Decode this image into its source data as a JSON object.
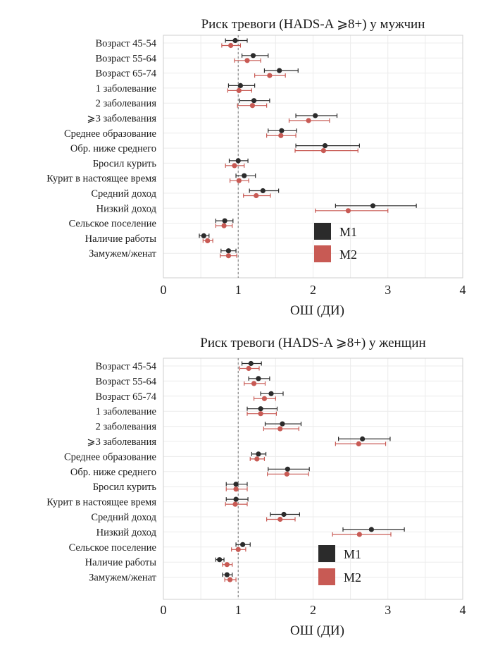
{
  "colors": {
    "m1": "#2b2b2b",
    "m2": "#c85a54"
  },
  "chart_data": [
    {
      "type": "forest",
      "title": "Риск тревоги (HADS-A ⩾8+) у мужчин",
      "xlabel": "ОШ (ДИ)",
      "xlim": [
        0,
        4
      ],
      "xticks": [
        "0",
        "1",
        "2",
        "3",
        "4"
      ],
      "reference_line": 1,
      "legend": {
        "position": "bottom-right",
        "entries": [
          "М1",
          "М2"
        ]
      },
      "categories": [
        "Возраст 45-54",
        "Возраст 55-64",
        "Возраст 65-74",
        "1 заболевание",
        "2 заболевания",
        "⩾3  заболевания",
        "Среднее образование",
        "Обр. ниже среднего",
        "Бросил курить",
        "Курит в настоящее время",
        "Средний доход",
        "Низкий доход",
        "Сельское поселение",
        "Наличие работы",
        "Замужем/женат"
      ],
      "series": [
        {
          "name": "М1",
          "values": [
            0.96,
            1.2,
            1.55,
            1.03,
            1.21,
            2.03,
            1.58,
            2.16,
            1.0,
            1.08,
            1.33,
            2.8,
            0.82,
            0.54,
            0.87
          ],
          "lower": [
            0.83,
            1.05,
            1.35,
            0.87,
            1.02,
            1.77,
            1.4,
            1.77,
            0.88,
            0.97,
            1.15,
            2.3,
            0.7,
            0.48,
            0.77
          ],
          "upper": [
            1.12,
            1.4,
            1.8,
            1.22,
            1.42,
            2.32,
            1.78,
            2.62,
            1.13,
            1.23,
            1.54,
            3.38,
            0.93,
            0.61,
            0.97
          ]
        },
        {
          "name": "М2",
          "values": [
            0.9,
            1.12,
            1.42,
            1.01,
            1.19,
            1.94,
            1.57,
            2.14,
            0.95,
            1.01,
            1.24,
            2.47,
            0.81,
            0.59,
            0.87
          ],
          "lower": [
            0.78,
            0.95,
            1.22,
            0.86,
            0.99,
            1.68,
            1.38,
            1.76,
            0.83,
            0.89,
            1.07,
            2.03,
            0.7,
            0.53,
            0.76
          ],
          "upper": [
            1.03,
            1.3,
            1.63,
            1.18,
            1.38,
            2.22,
            1.77,
            2.6,
            1.08,
            1.14,
            1.43,
            3.0,
            0.92,
            0.66,
            0.98
          ]
        }
      ]
    },
    {
      "type": "forest",
      "title": "Риск тревоги (HADS-A ⩾8+) у женщин",
      "xlabel": "ОШ (ДИ)",
      "xlim": [
        0,
        4
      ],
      "xticks": [
        "0",
        "1",
        "2",
        "3",
        "4"
      ],
      "reference_line": 1,
      "legend": {
        "position": "bottom-right",
        "entries": [
          "М1",
          "М2"
        ]
      },
      "categories": [
        "Возраст 45-54",
        "Возраст 55-64",
        "Возраст 65-74",
        "1 заболевание",
        "2 заболевания",
        "⩾3  заболевания",
        "Среднее образование",
        "Обр. ниже среднего",
        "Бросил курить",
        "Курит в настоящее время",
        "Средний доход",
        "Низкий доход",
        "Сельское поселение",
        "Наличие работы",
        "Замужем/женат"
      ],
      "series": [
        {
          "name": "М1",
          "values": [
            1.17,
            1.27,
            1.44,
            1.3,
            1.59,
            2.66,
            1.27,
            1.66,
            0.97,
            0.97,
            1.61,
            2.78,
            1.06,
            0.75,
            0.85
          ],
          "lower": [
            1.05,
            1.14,
            1.3,
            1.12,
            1.36,
            2.34,
            1.18,
            1.4,
            0.84,
            0.84,
            1.43,
            2.4,
            0.97,
            0.7,
            0.79
          ],
          "upper": [
            1.31,
            1.42,
            1.6,
            1.52,
            1.84,
            3.03,
            1.37,
            1.95,
            1.12,
            1.13,
            1.82,
            3.22,
            1.16,
            0.81,
            0.92
          ]
        },
        {
          "name": "М2",
          "values": [
            1.14,
            1.21,
            1.35,
            1.3,
            1.56,
            2.61,
            1.25,
            1.65,
            0.97,
            0.96,
            1.56,
            2.62,
            1.0,
            0.85,
            0.89
          ],
          "lower": [
            1.02,
            1.08,
            1.21,
            1.12,
            1.34,
            2.3,
            1.16,
            1.39,
            0.84,
            0.83,
            1.38,
            2.26,
            0.91,
            0.79,
            0.82
          ],
          "upper": [
            1.28,
            1.36,
            1.5,
            1.51,
            1.81,
            2.97,
            1.35,
            1.94,
            1.12,
            1.12,
            1.76,
            3.04,
            1.1,
            0.92,
            0.97
          ]
        }
      ]
    }
  ]
}
